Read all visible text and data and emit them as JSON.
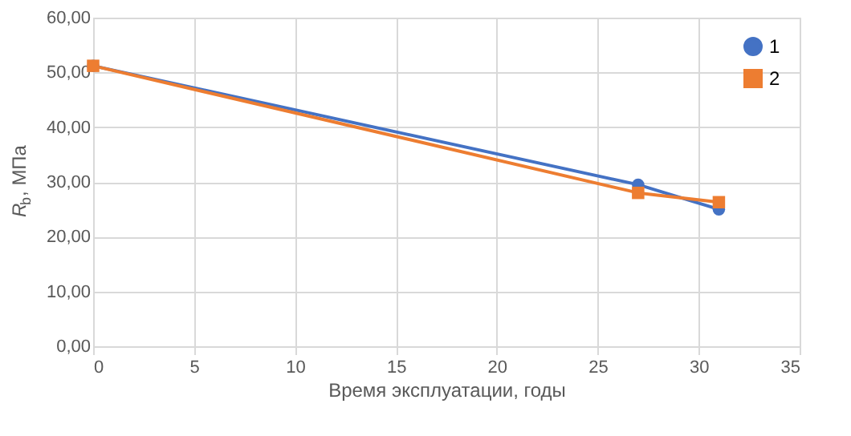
{
  "chart_data": {
    "type": "line",
    "xlabel": "Время эксплуатации, годы",
    "ylabel": "R$_{b}$, МПа",
    "x": [
      0,
      27,
      31
    ],
    "series": [
      {
        "name": "1",
        "color": "#4472c4",
        "marker": "circle",
        "values": [
          51.2,
          29.5,
          25.0
        ]
      },
      {
        "name": "2",
        "color": "#ed7d31",
        "marker": "square",
        "values": [
          51.2,
          28.0,
          26.3
        ]
      }
    ],
    "xlim": [
      0,
      35
    ],
    "xticks": [
      0,
      5,
      10,
      15,
      20,
      25,
      30,
      35
    ],
    "ylim": [
      0,
      60
    ],
    "yticks": [
      {
        "value": 0,
        "label": "0,00"
      },
      {
        "value": 10,
        "label": "10,00"
      },
      {
        "value": 20,
        "label": "20,00"
      },
      {
        "value": 30,
        "label": "30,00"
      },
      {
        "value": 40,
        "label": "40,00"
      },
      {
        "value": 50,
        "label": "50,00"
      },
      {
        "value": 60,
        "label": "60,00"
      }
    ],
    "grid": true,
    "legend": "top right",
    "line_style": "solid"
  }
}
